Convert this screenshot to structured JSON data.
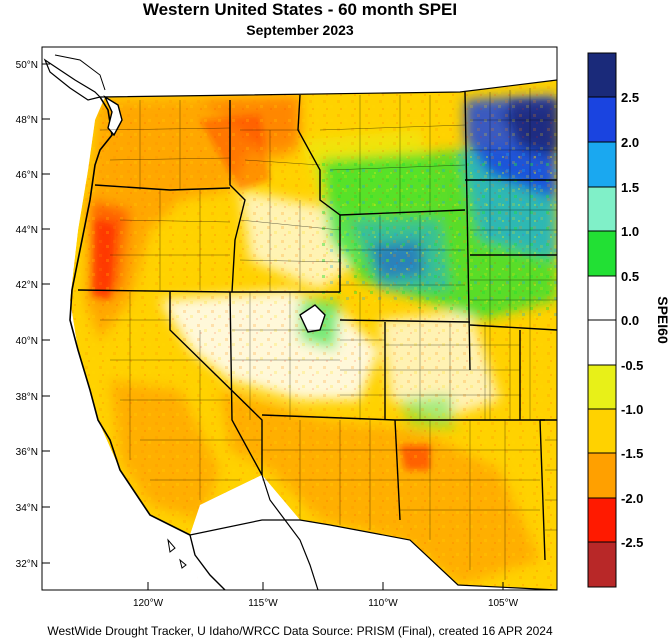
{
  "title": "Western United States - 60 month SPEI",
  "subtitle": "September 2023",
  "footer": "WestWide Drought Tracker, U Idaho/WRCC Data Source: PRISM (Final), created 16 APR 2024",
  "latitude_labels": [
    "50°N",
    "48°N",
    "46°N",
    "44°N",
    "42°N",
    "40°N",
    "38°N",
    "36°N",
    "34°N",
    "32°N"
  ],
  "longitude_labels": [
    "120°W",
    "115°W",
    "110°W",
    "105°W"
  ],
  "colorbar": {
    "title": "SPEI60",
    "tick_labels": [
      "2.5",
      "2.0",
      "1.5",
      "1.0",
      "0.5",
      "0.0",
      "-0.5",
      "-1.0",
      "-1.5",
      "-2.0",
      "-2.5"
    ],
    "bins": [
      {
        "color": "#1a2a7a"
      },
      {
        "color": "#1a44e0"
      },
      {
        "color": "#1aa8f0"
      },
      {
        "color": "#80f0c8"
      },
      {
        "color": "#22e034"
      },
      {
        "color": "#ffffff"
      },
      {
        "color": "#ffffff"
      },
      {
        "color": "#e8f018"
      },
      {
        "color": "#ffd200"
      },
      {
        "color": "#ffa000"
      },
      {
        "color": "#ff1a00"
      },
      {
        "color": "#b82828"
      }
    ]
  },
  "regions": [
    {
      "name": "pacific-northwest",
      "category": "-1.0 to -1.5",
      "color": "#ffb000"
    },
    {
      "name": "northern-plains",
      "category": "2.0 to 2.5",
      "color": "#1a44e0"
    },
    {
      "name": "wyoming-colorado",
      "category": "0.5 to 1.5",
      "color": "#22e034"
    },
    {
      "name": "great-basin",
      "category": "-0.5 to 0.5",
      "color": "#ffffff"
    },
    {
      "name": "southwest",
      "category": "-1.0 to -1.5",
      "color": "#ffc800"
    }
  ]
}
